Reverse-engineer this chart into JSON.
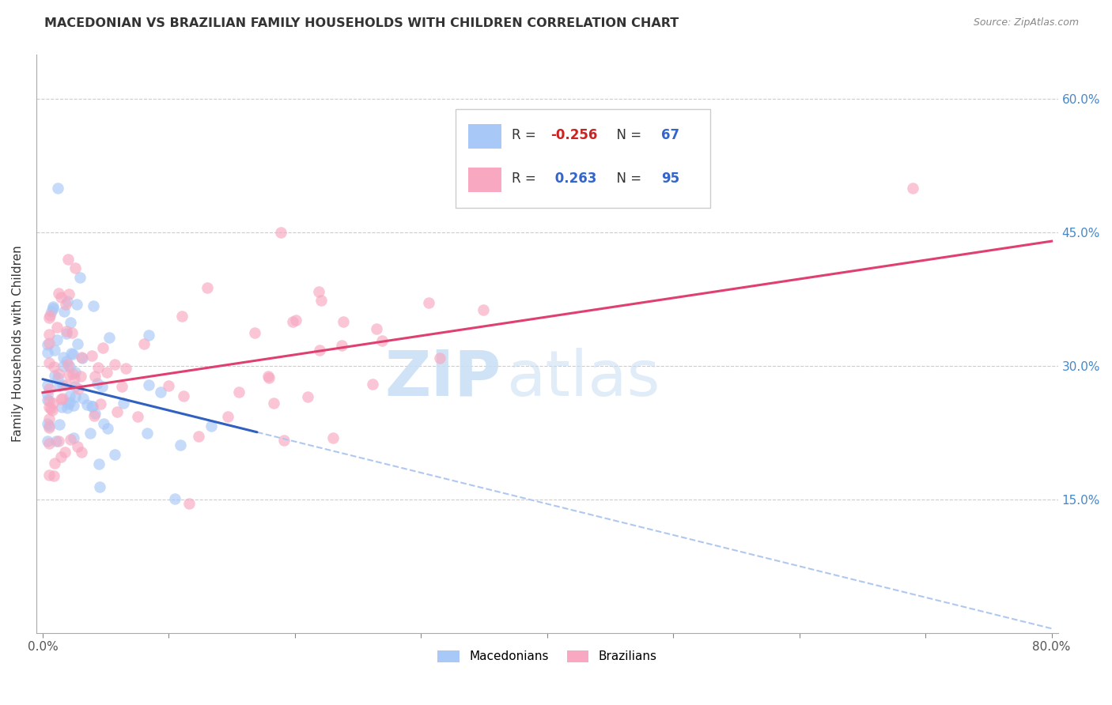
{
  "title": "MACEDONIAN VS BRAZILIAN FAMILY HOUSEHOLDS WITH CHILDREN CORRELATION CHART",
  "source": "Source: ZipAtlas.com",
  "ylabel": "Family Households with Children",
  "xlabel": "",
  "xlim": [
    0.0,
    0.8
  ],
  "ylim": [
    0.0,
    0.65
  ],
  "yticks": [
    0.15,
    0.3,
    0.45,
    0.6
  ],
  "ytick_labels_right": [
    "15.0%",
    "30.0%",
    "45.0%",
    "60.0%"
  ],
  "xticks": [
    0.0,
    0.1,
    0.2,
    0.3,
    0.4,
    0.5,
    0.6,
    0.7,
    0.8
  ],
  "xticklabels": [
    "0.0%",
    "",
    "",
    "",
    "",
    "",
    "",
    "",
    "80.0%"
  ],
  "grid_color": "#cccccc",
  "background_color": "#ffffff",
  "macedonian_color": "#a8c8f8",
  "brazilian_color": "#f8a8c0",
  "macedonian_line_color": "#3060c0",
  "brazilian_line_color": "#e04070",
  "macedonian_dash_color": "#b0c8f0",
  "legend_label1": "Macedonians",
  "legend_label2": "Brazilians",
  "watermark_zip_color": "#c8dff5",
  "watermark_atlas_color": "#c8dff5",
  "mac_R": "-0.256",
  "mac_N": "67",
  "bra_R": "0.263",
  "bra_N": "95",
  "mac_R_color": "#cc2222",
  "bra_R_color": "#3366cc",
  "N_color": "#3366cc",
  "legend_text_color": "#333333",
  "right_tick_color": "#4488cc",
  "title_color": "#333333",
  "source_color": "#888888",
  "ylabel_color": "#333333"
}
